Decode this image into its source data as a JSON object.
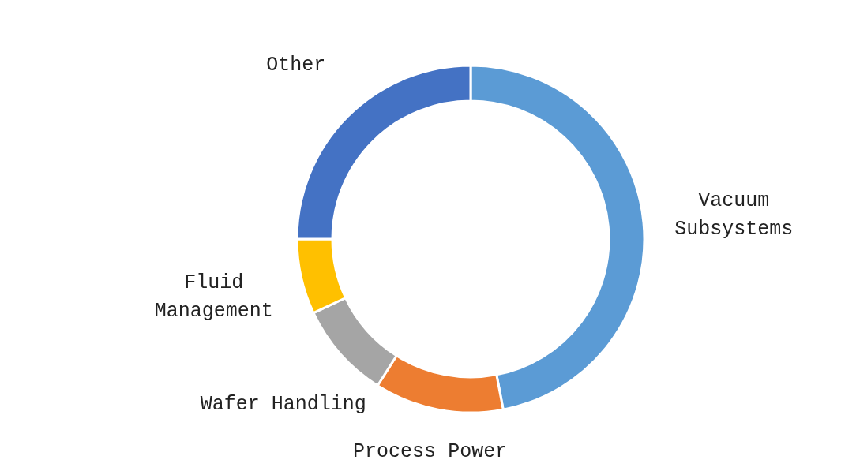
{
  "chart_data": {
    "type": "donut",
    "categories": [
      "Vacuum Subsystems",
      "Process Power",
      "Wafer Handling",
      "Fluid Management",
      "Other"
    ],
    "values": [
      47,
      12,
      9,
      7,
      25
    ],
    "colors": [
      "#5b9bd5",
      "#ed7d31",
      "#a5a5a5",
      "#ffc000",
      "#4472c4"
    ],
    "legend": false
  }
}
